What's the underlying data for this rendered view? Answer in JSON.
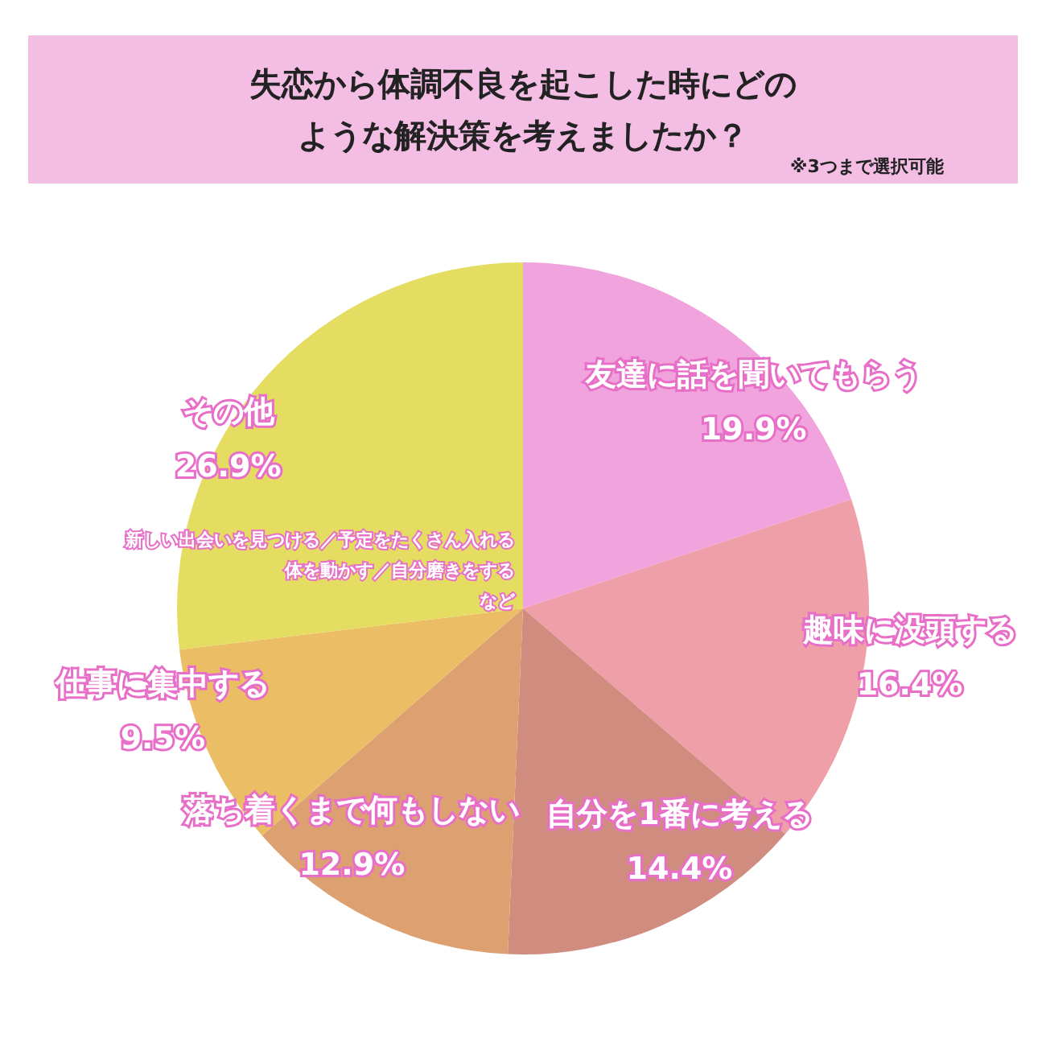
{
  "chart_data": {
    "type": "pie",
    "title": "失恋から体調不良を起こした時にどのような解決策を考えましたか？",
    "subtitle": "※3つまで選択可能",
    "categories": [
      "友達に話を聞いてもらう",
      "趣味に没頭する",
      "自分を1番に考える",
      "落ち着くまで何もしない",
      "仕事に集中する",
      "その他"
    ],
    "values": [
      19.9,
      16.4,
      14.4,
      12.9,
      9.5,
      26.9
    ],
    "value_labels": [
      "19.9%",
      "16.4%",
      "14.4%",
      "12.9%",
      "9.5%",
      "26.9%"
    ],
    "colors": [
      "#f0a3dc",
      "#ee9fa8",
      "#d18c80",
      "#dda070",
      "#ebbd65",
      "#e5dd62"
    ],
    "annotations": [
      "新しい出会いを見つける／予定をたくさん入れる",
      "体を動かす／自分磨きをする",
      "など"
    ],
    "legend": false
  }
}
